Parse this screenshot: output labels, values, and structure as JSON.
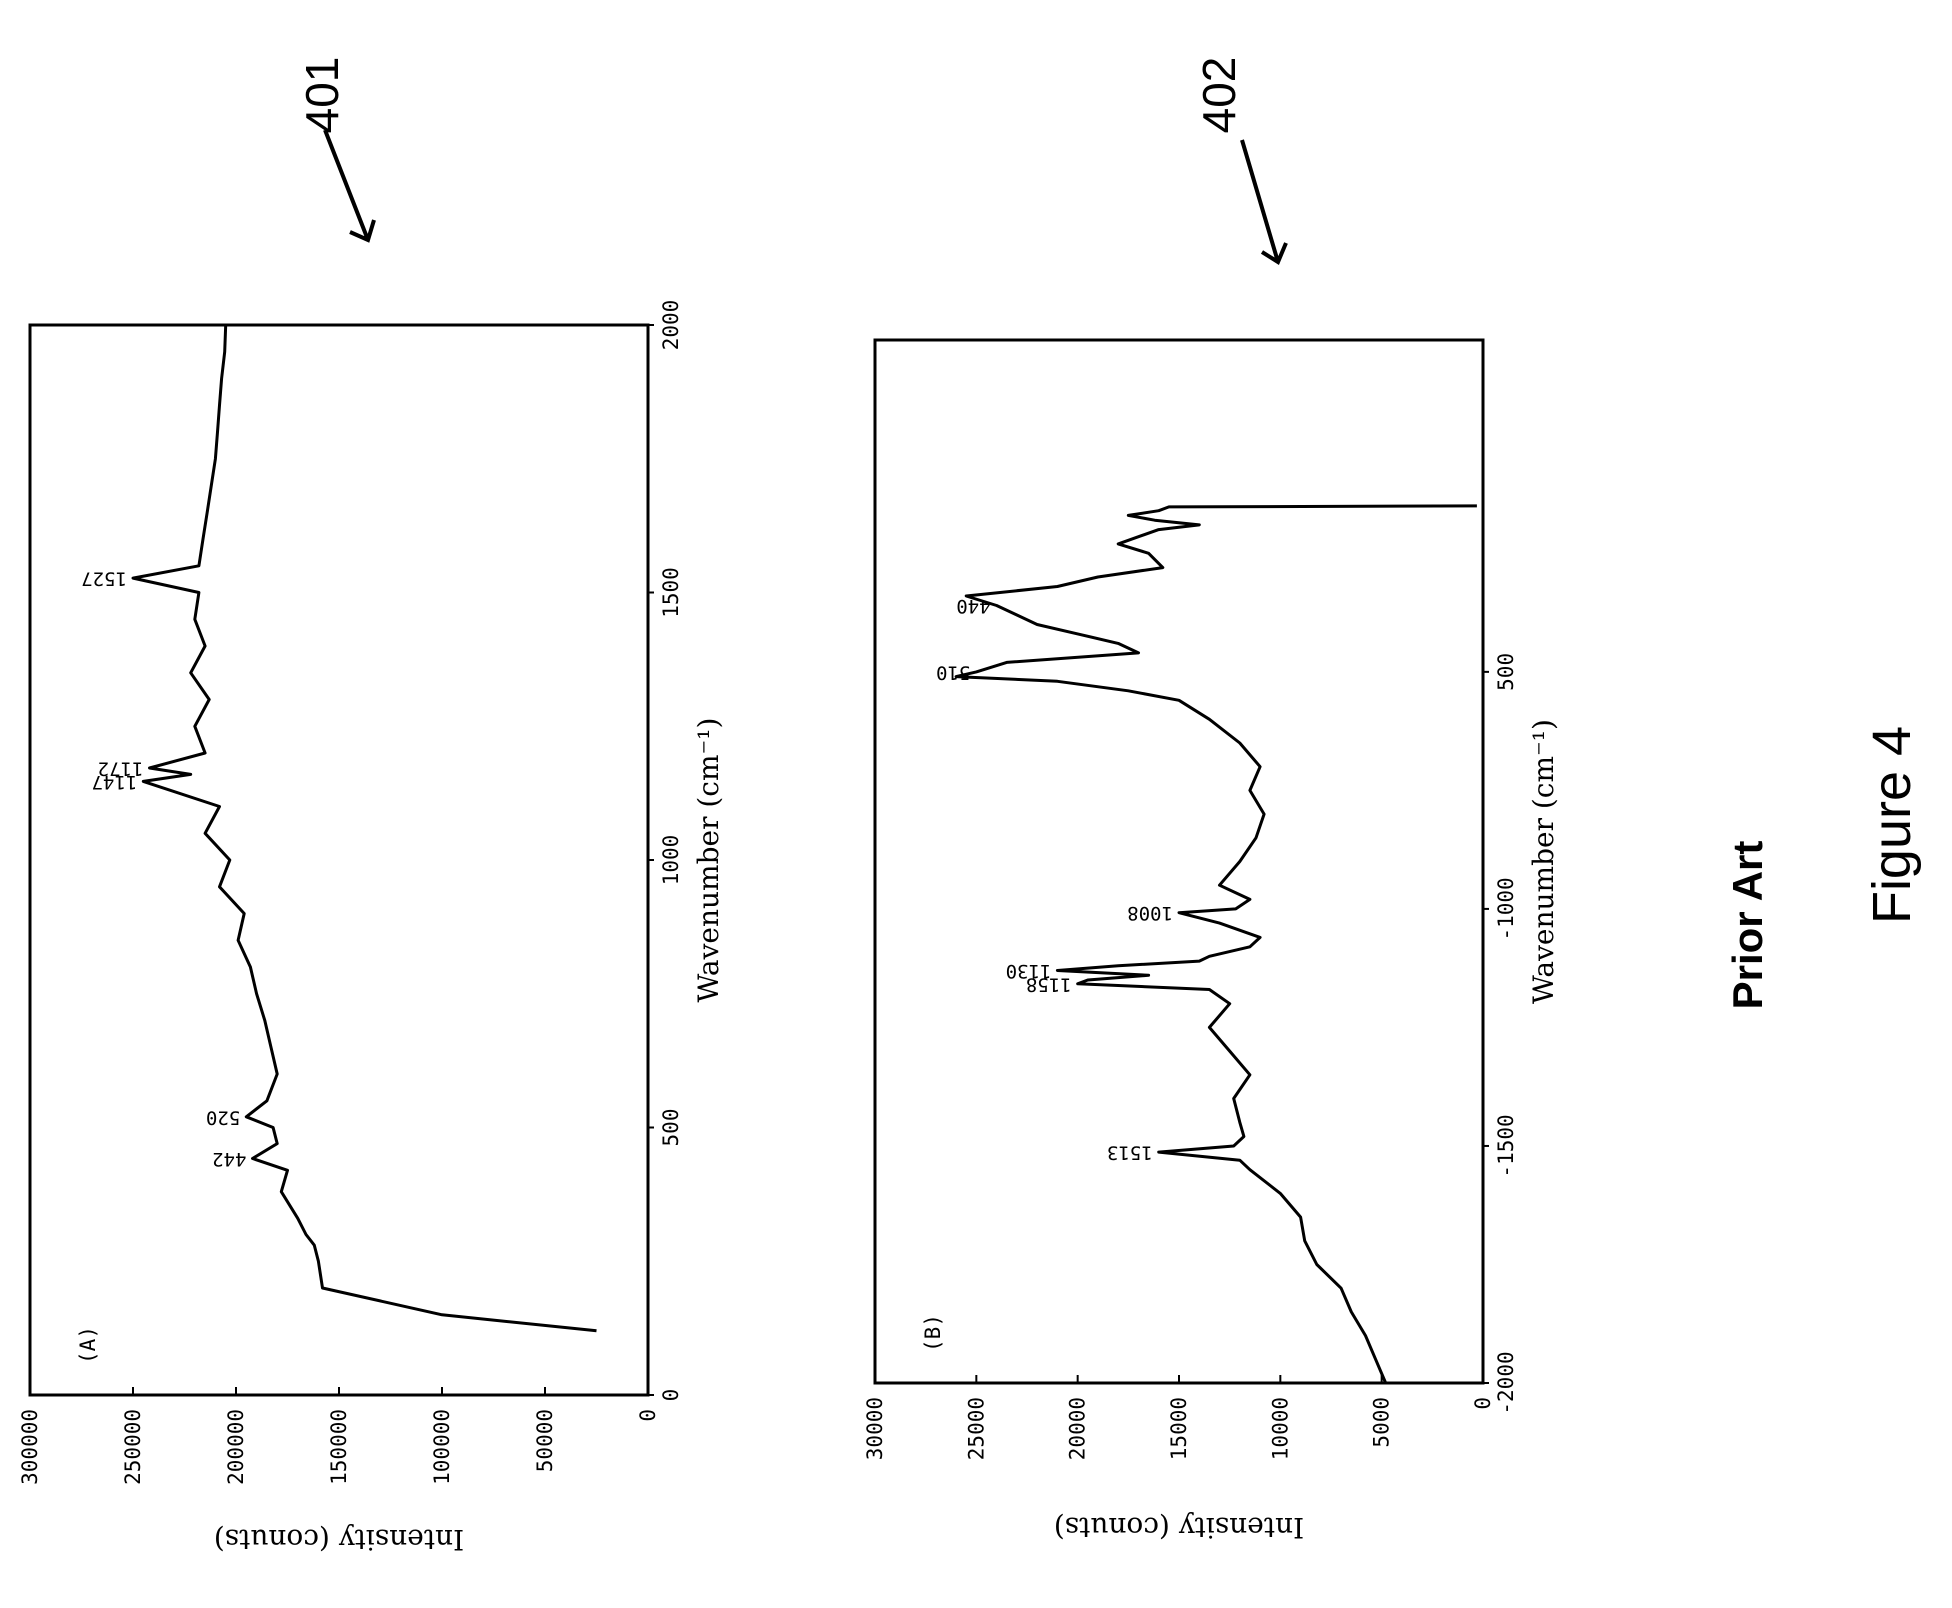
{
  "figure": {
    "title": "Figure 4",
    "subtitle": "Prior Art"
  },
  "chart_data": [
    {
      "type": "line",
      "panel": "(A)",
      "ref": "401",
      "xlabel": "Wavenumber (cm⁻¹)",
      "ylabel": "Intensity (conuts)",
      "xlim": [
        2000,
        0
      ],
      "ylim": [
        0,
        300000
      ],
      "xticks": [
        "2000",
        "1500",
        "1000",
        "500",
        "0"
      ],
      "yticks": [
        "0",
        "50000",
        "100000",
        "150000",
        "200000",
        "250000",
        "300000"
      ],
      "x": [
        2000,
        1950,
        1900,
        1850,
        1800,
        1750,
        1700,
        1650,
        1600,
        1550,
        1527,
        1500,
        1450,
        1400,
        1350,
        1300,
        1250,
        1200,
        1172,
        1160,
        1147,
        1100,
        1050,
        1000,
        950,
        900,
        850,
        800,
        750,
        700,
        650,
        600,
        550,
        520,
        500,
        470,
        442,
        420,
        380,
        330,
        300,
        280,
        250,
        200,
        150,
        120
      ],
      "y": [
        205000,
        205500,
        207000,
        208000,
        209000,
        210000,
        212000,
        214000,
        216000,
        218000,
        250000,
        218000,
        220000,
        215000,
        222000,
        213000,
        220000,
        215000,
        242000,
        222000,
        245000,
        208000,
        215000,
        203000,
        208000,
        196000,
        199000,
        193000,
        190000,
        186000,
        183000,
        180000,
        185000,
        195000,
        182000,
        180000,
        192000,
        175000,
        178000,
        170000,
        166000,
        162000,
        160000,
        158000,
        100000,
        25000
      ],
      "annotations": [
        {
          "label": "1527",
          "x": 1527,
          "y": 250000
        },
        {
          "label": "1172",
          "x": 1172,
          "y": 242000
        },
        {
          "label": "1147",
          "x": 1147,
          "y": 245000
        },
        {
          "label": "520",
          "x": 520,
          "y": 195000
        },
        {
          "label": "442",
          "x": 442,
          "y": 192000
        }
      ]
    },
    {
      "type": "line",
      "panel": "(B)",
      "ref": "402",
      "xlabel": "Wavenumber (cm⁻¹)",
      "ylabel": "Intensity (conuts)",
      "xlim": [
        200,
        -2000
      ],
      "ylim": [
        0,
        30000
      ],
      "xticks": [
        "500",
        "-1000",
        "-1500",
        "-2000"
      ],
      "xtick_values": [
        -500,
        -1000,
        -1500,
        -2000
      ],
      "yticks": [
        "0",
        "5000",
        "10000",
        "15000",
        "20000",
        "25000",
        "30000"
      ],
      "x": [
        -150,
        -152,
        -160,
        -170,
        -180,
        -190,
        -200,
        -215,
        -230,
        -250,
        -280,
        -300,
        -320,
        -340,
        -360,
        -380,
        -400,
        -420,
        -440,
        -460,
        -480,
        -500,
        -510,
        -520,
        -540,
        -560,
        -600,
        -650,
        -700,
        -750,
        -800,
        -850,
        -900,
        -950,
        -980,
        -1000,
        -1008,
        -1030,
        -1060,
        -1080,
        -1100,
        -1110,
        -1120,
        -1130,
        -1140,
        -1150,
        -1158,
        -1170,
        -1200,
        -1250,
        -1300,
        -1350,
        -1400,
        -1450,
        -1480,
        -1500,
        -1513,
        -1530,
        -1550,
        -1600,
        -1650,
        -1700,
        -1750,
        -1800,
        -1850,
        -1900,
        -1950,
        -2000
      ],
      "y": [
        300,
        15500,
        16000,
        17500,
        16200,
        14000,
        16000,
        17000,
        18000,
        16500,
        15800,
        19000,
        21000,
        25500,
        24000,
        23000,
        22000,
        20000,
        18000,
        17000,
        23500,
        25000,
        26000,
        21000,
        17500,
        15000,
        13500,
        12000,
        11000,
        11500,
        10800,
        11200,
        12000,
        13000,
        11500,
        12200,
        15000,
        13000,
        11000,
        11500,
        13500,
        14000,
        18000,
        21000,
        16500,
        19500,
        20000,
        13500,
        12500,
        13500,
        12500,
        11500,
        12300,
        12000,
        11800,
        12300,
        16000,
        12000,
        11500,
        10000,
        9000,
        8800,
        8200,
        7000,
        6500,
        5800,
        5300,
        4800
      ],
      "annotations": [
        {
          "label": "440",
          "x": -360,
          "y": 24000
        },
        {
          "label": "510",
          "x": -500,
          "y": 25000
        },
        {
          "label": "1008",
          "x": -1008,
          "y": 15000
        },
        {
          "label": "1130",
          "x": -1130,
          "y": 21000
        },
        {
          "label": "1158",
          "x": -1158,
          "y": 20000
        },
        {
          "label": "1513",
          "x": -1513,
          "y": 16000
        }
      ]
    }
  ]
}
